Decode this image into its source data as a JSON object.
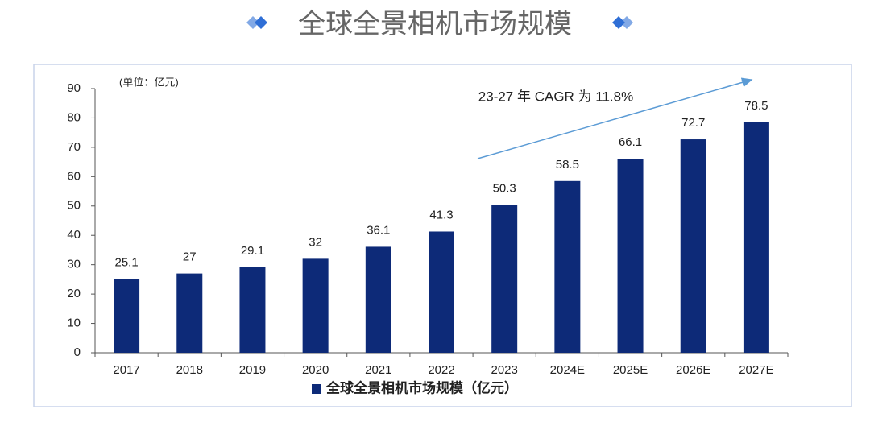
{
  "chart_data": {
    "type": "bar",
    "title": "全球全景相机市场规模",
    "unit_note": "(单位：亿元)",
    "annotation": "23-27 年 CAGR 为 11.8%",
    "categories": [
      "2017",
      "2018",
      "2019",
      "2020",
      "2021",
      "2022",
      "2023",
      "2024E",
      "2025E",
      "2026E",
      "2027E"
    ],
    "series": [
      {
        "name": "全球全景相机市场规模（亿元）",
        "color": "#0d2a78",
        "values": [
          25.1,
          27,
          29.1,
          32,
          36.1,
          41.3,
          50.3,
          58.5,
          66.1,
          72.7,
          78.5
        ]
      }
    ],
    "ylim": [
      0,
      90
    ],
    "yticks": [
      0,
      10,
      20,
      30,
      40,
      50,
      60,
      70,
      80,
      90
    ],
    "grid": false,
    "legend": "bottom"
  }
}
